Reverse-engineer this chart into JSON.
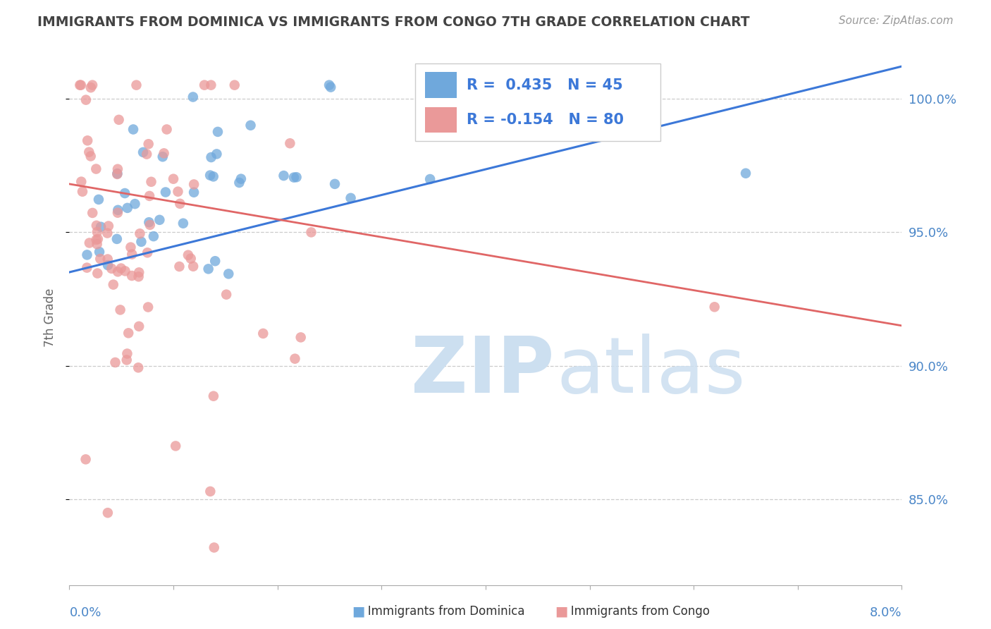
{
  "title": "IMMIGRANTS FROM DOMINICA VS IMMIGRANTS FROM CONGO 7TH GRADE CORRELATION CHART",
  "source": "Source: ZipAtlas.com",
  "ylabel": "7th Grade",
  "y_tick_vals": [
    0.85,
    0.9,
    0.95,
    1.0
  ],
  "y_tick_labels": [
    "85.0%",
    "90.0%",
    "95.0%",
    "100.0%"
  ],
  "x_range": [
    0.0,
    0.08
  ],
  "y_range": [
    0.818,
    1.018
  ],
  "R_dominica": 0.435,
  "N_dominica": 45,
  "R_congo": -0.154,
  "N_congo": 80,
  "color_dominica": "#6fa8dc",
  "color_congo": "#ea9999",
  "color_dominica_line": "#3c78d8",
  "color_congo_line": "#e06666",
  "watermark_color": "#daeaf7",
  "legend_R_color": "#3c78d8",
  "title_color": "#434343",
  "axis_label_color": "#4a86c8",
  "background_color": "#ffffff"
}
